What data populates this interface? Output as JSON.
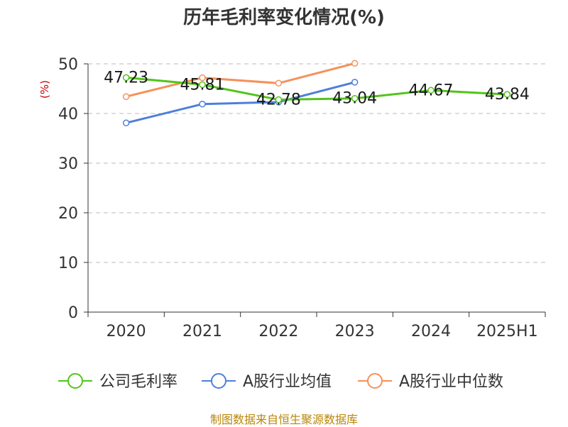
{
  "chart_data": {
    "type": "line",
    "title": "历年毛利率变化情况(%)",
    "ylabel": "(%)",
    "categories": [
      "2020",
      "2021",
      "2022",
      "2023",
      "2024",
      "2025H1"
    ],
    "ylim": [
      0,
      50
    ],
    "yticks": [
      0,
      10,
      20,
      30,
      40,
      50
    ],
    "grid": true,
    "legend_position": "bottom",
    "series": [
      {
        "name": "公司毛利率",
        "color": "#52c41a",
        "values": [
          47.23,
          45.81,
          42.78,
          43.04,
          44.67,
          43.84
        ],
        "labels": [
          "47.23",
          "45.81",
          "42.78",
          "43.04",
          "44.67",
          "43.84"
        ]
      },
      {
        "name": "A股行业均值",
        "color": "#4e7fd9",
        "values": [
          38.1,
          41.9,
          42.3,
          46.3,
          null,
          null
        ]
      },
      {
        "name": "A股行业中位数",
        "color": "#f5915a",
        "values": [
          43.4,
          47.2,
          46.1,
          50.1,
          null,
          null
        ]
      }
    ]
  },
  "source": "制图数据来自恒生聚源数据库"
}
